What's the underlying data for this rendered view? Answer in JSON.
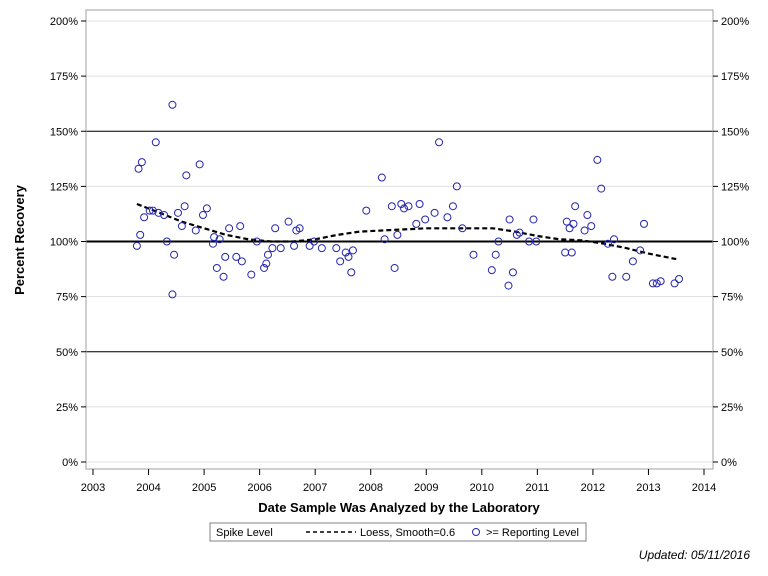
{
  "chart_data": {
    "type": "scatter",
    "xlabel": "Date Sample Was Analyzed by the Laboratory",
    "ylabel": "Percent Recovery",
    "xlim": [
      2003,
      2014
    ],
    "ylim": [
      0,
      200
    ],
    "x_ticks": [
      "2003",
      "2004",
      "2005",
      "2006",
      "2007",
      "2008",
      "2009",
      "2010",
      "2011",
      "2012",
      "2013",
      "2014"
    ],
    "y_ticks": [
      "0%",
      "25%",
      "50%",
      "75%",
      "100%",
      "125%",
      "150%",
      "175%",
      "200%"
    ],
    "reference_lines": [
      {
        "y": 100,
        "style": "thick"
      },
      {
        "y": 50,
        "style": "thin"
      },
      {
        "y": 150,
        "style": "thin"
      }
    ],
    "grid": true,
    "legend": {
      "placement": "bottom-center",
      "title": "Spike Level",
      "loess_label": "Loess, Smooth=0.6",
      "points_label": ">= Reporting Level"
    },
    "colors": {
      "points": "#2626b0",
      "loess": "#000000",
      "grid": "#e0e0e0",
      "reference": "#000000"
    },
    "series": [
      {
        "name": ">= Reporting Level",
        "points": [
          [
            2003.79,
            98
          ],
          [
            2003.82,
            133
          ],
          [
            2003.85,
            103
          ],
          [
            2003.88,
            136
          ],
          [
            2003.92,
            111
          ],
          [
            2004.02,
            114
          ],
          [
            2004.08,
            114
          ],
          [
            2004.13,
            145
          ],
          [
            2004.18,
            113
          ],
          [
            2004.28,
            112
          ],
          [
            2004.33,
            100
          ],
          [
            2004.43,
            76
          ],
          [
            2004.43,
            162
          ],
          [
            2004.46,
            94
          ],
          [
            2004.53,
            113
          ],
          [
            2004.6,
            107
          ],
          [
            2004.65,
            116
          ],
          [
            2004.68,
            130
          ],
          [
            2004.85,
            105
          ],
          [
            2004.92,
            135
          ],
          [
            2004.98,
            112
          ],
          [
            2005.05,
            115
          ],
          [
            2005.16,
            99
          ],
          [
            2005.18,
            102
          ],
          [
            2005.23,
            88
          ],
          [
            2005.28,
            101
          ],
          [
            2005.35,
            84
          ],
          [
            2005.38,
            93
          ],
          [
            2005.45,
            106
          ],
          [
            2005.58,
            93
          ],
          [
            2005.65,
            107
          ],
          [
            2005.68,
            91
          ],
          [
            2005.85,
            85
          ],
          [
            2005.95,
            100
          ],
          [
            2006.08,
            88
          ],
          [
            2006.12,
            90
          ],
          [
            2006.15,
            94
          ],
          [
            2006.23,
            97
          ],
          [
            2006.28,
            106
          ],
          [
            2006.38,
            97
          ],
          [
            2006.52,
            109
          ],
          [
            2006.62,
            98
          ],
          [
            2006.66,
            105
          ],
          [
            2006.72,
            106
          ],
          [
            2006.9,
            98
          ],
          [
            2006.98,
            100
          ],
          [
            2007.12,
            97
          ],
          [
            2007.38,
            97
          ],
          [
            2007.45,
            91
          ],
          [
            2007.55,
            95
          ],
          [
            2007.6,
            93
          ],
          [
            2007.65,
            86
          ],
          [
            2007.68,
            96
          ],
          [
            2007.92,
            114
          ],
          [
            2008.2,
            129
          ],
          [
            2008.25,
            101
          ],
          [
            2008.38,
            116
          ],
          [
            2008.43,
            88
          ],
          [
            2008.48,
            103
          ],
          [
            2008.55,
            117
          ],
          [
            2008.6,
            115
          ],
          [
            2008.68,
            116
          ],
          [
            2008.82,
            108
          ],
          [
            2008.88,
            117
          ],
          [
            2008.98,
            110
          ],
          [
            2009.15,
            113
          ],
          [
            2009.23,
            145
          ],
          [
            2009.38,
            111
          ],
          [
            2009.48,
            116
          ],
          [
            2009.55,
            125
          ],
          [
            2009.65,
            106
          ],
          [
            2009.85,
            94
          ],
          [
            2010.18,
            87
          ],
          [
            2010.25,
            94
          ],
          [
            2010.3,
            100
          ],
          [
            2010.48,
            80
          ],
          [
            2010.5,
            110
          ],
          [
            2010.56,
            86
          ],
          [
            2010.63,
            103
          ],
          [
            2010.68,
            104
          ],
          [
            2010.85,
            100
          ],
          [
            2010.93,
            110
          ],
          [
            2010.98,
            100
          ],
          [
            2011.5,
            95
          ],
          [
            2011.53,
            109
          ],
          [
            2011.58,
            106
          ],
          [
            2011.62,
            95
          ],
          [
            2011.65,
            108
          ],
          [
            2011.68,
            116
          ],
          [
            2011.85,
            105
          ],
          [
            2011.9,
            112
          ],
          [
            2011.97,
            107
          ],
          [
            2012.08,
            137
          ],
          [
            2012.15,
            124
          ],
          [
            2012.27,
            99
          ],
          [
            2012.35,
            84
          ],
          [
            2012.38,
            101
          ],
          [
            2012.6,
            84
          ],
          [
            2012.72,
            91
          ],
          [
            2012.85,
            96
          ],
          [
            2012.92,
            108
          ],
          [
            2013.08,
            81
          ],
          [
            2013.15,
            81
          ],
          [
            2013.22,
            82
          ],
          [
            2013.47,
            81
          ],
          [
            2013.55,
            83
          ]
        ]
      },
      {
        "name": "Loess, Smooth=0.6",
        "points": [
          [
            2003.79,
            117
          ],
          [
            2004.2,
            113
          ],
          [
            2004.6,
            109
          ],
          [
            2005.0,
            106
          ],
          [
            2005.4,
            103
          ],
          [
            2005.8,
            101
          ],
          [
            2006.2,
            100
          ],
          [
            2006.6,
            100
          ],
          [
            2007.0,
            101
          ],
          [
            2007.4,
            103
          ],
          [
            2007.8,
            104.5
          ],
          [
            2008.2,
            105
          ],
          [
            2008.6,
            105.5
          ],
          [
            2009.0,
            106
          ],
          [
            2009.4,
            106
          ],
          [
            2009.8,
            106
          ],
          [
            2010.2,
            106
          ],
          [
            2010.6,
            104.5
          ],
          [
            2011.0,
            102.5
          ],
          [
            2011.4,
            101
          ],
          [
            2011.8,
            100.5
          ],
          [
            2012.2,
            99
          ],
          [
            2012.6,
            97
          ],
          [
            2013.0,
            94.5
          ],
          [
            2013.5,
            92
          ]
        ]
      }
    ]
  },
  "footer": {
    "updated": "Updated: 05/11/2016"
  }
}
